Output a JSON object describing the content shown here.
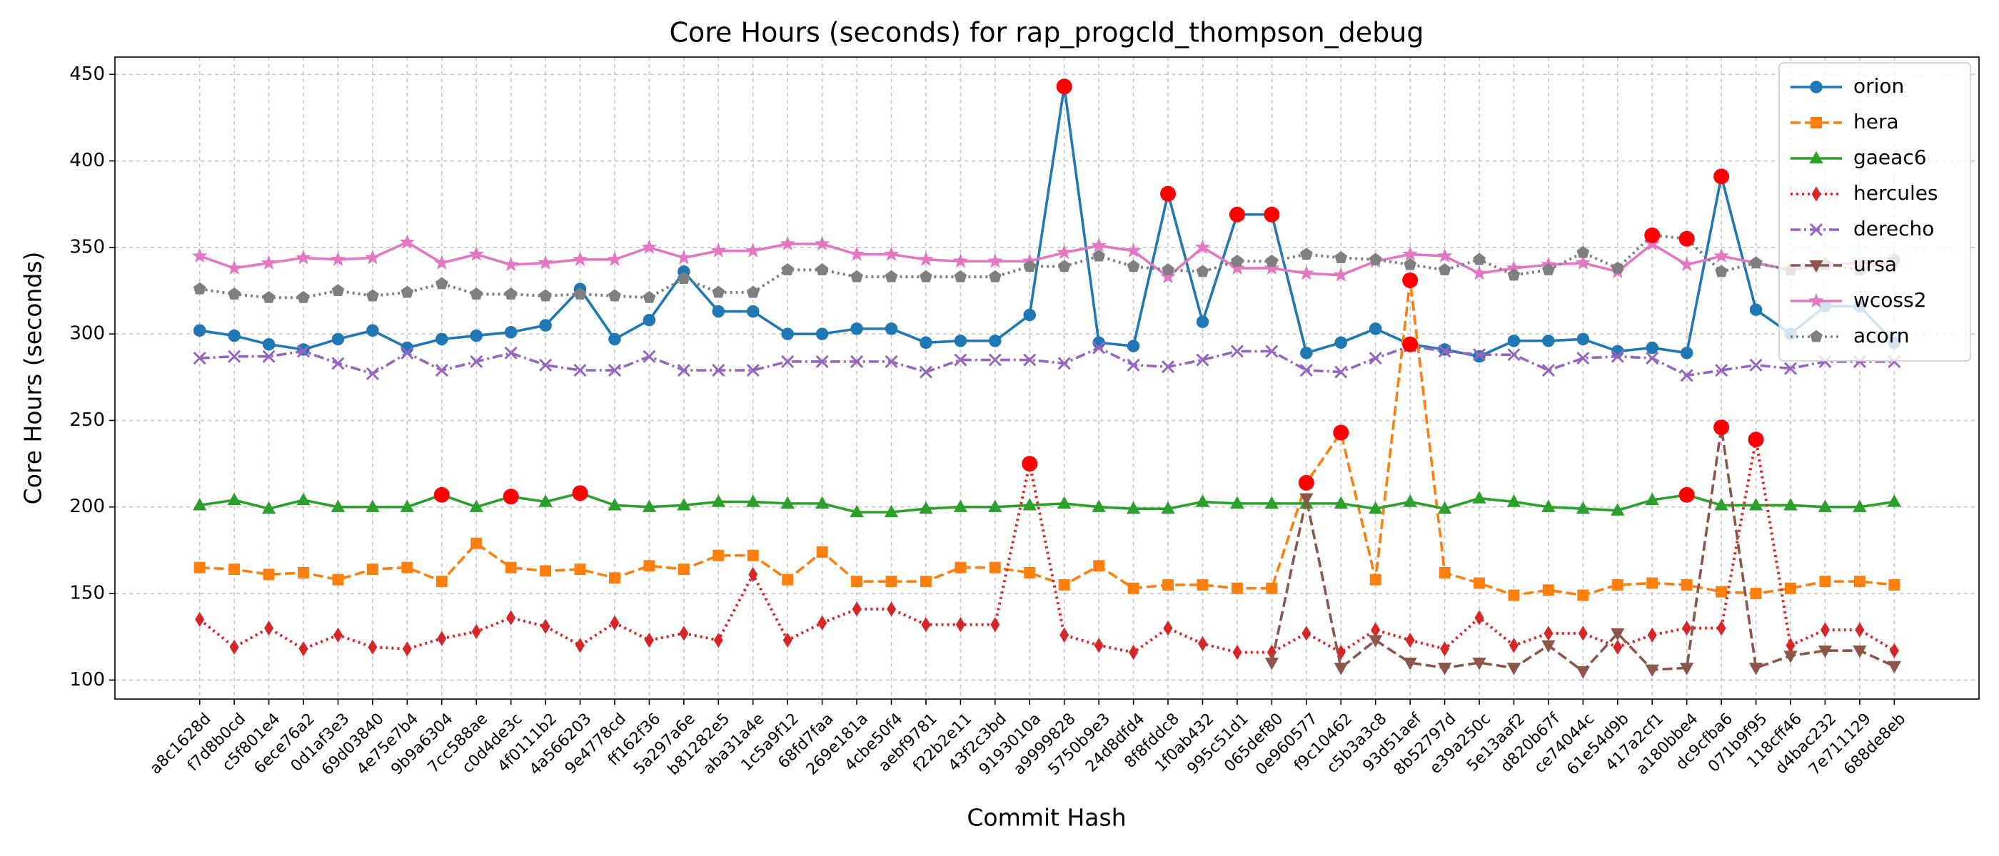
{
  "chart_data": {
    "type": "line",
    "title": "Core Hours (seconds) for rap_progcld_thompson_debug",
    "x_label": "Commit Hash",
    "y_label": "Core Hours (seconds)",
    "categories": [
      "a8c1628d",
      "f7d8b0cd",
      "c5f801e4",
      "6ece76a2",
      "0d1af3e3",
      "69d03840",
      "4e75e7b4",
      "9b9a6304",
      "7cc588ae",
      "c0d4de3c",
      "4f0111b2",
      "4a566203",
      "9e4778cd",
      "ff162f36",
      "5a297a6e",
      "b81282e5",
      "aba31a4e",
      "1c5a9f12",
      "68fd7faa",
      "269e181a",
      "4cbe50f4",
      "aebf9781",
      "f22b2e11",
      "43f2c3bd",
      "9193010a",
      "a9999828",
      "5750b9e3",
      "24d8dfd4",
      "8f8fddc8",
      "1f0ab432",
      "995c51d1",
      "065def80",
      "0e960577",
      "f9c10462",
      "c5b3a3c8",
      "93d51aef",
      "8b52797d",
      "e39a250c",
      "5e13aaf2",
      "d820b67f",
      "ce74044c",
      "61e54d9b",
      "417a2cf1",
      "a180bbe4",
      "dc9cfba6",
      "071b9f95",
      "118cff46",
      "d4bac232",
      "7e711129",
      "688de8eb"
    ],
    "ylim": [
      89,
      460
    ],
    "yticks": [
      100,
      150,
      200,
      250,
      300,
      350,
      400,
      450
    ],
    "grid": true,
    "legend": "upper right",
    "highlight_color": "#ff0000",
    "series": [
      {
        "name": "orion",
        "color": "#1f77b4",
        "marker": "circle",
        "dash": "solid",
        "values": [
          302,
          299,
          294,
          291,
          297,
          302,
          292,
          297,
          299,
          301,
          305,
          326,
          297,
          308,
          336,
          313,
          313,
          300,
          300,
          303,
          303,
          295,
          296,
          296,
          311,
          443,
          295,
          293,
          381,
          307,
          369,
          369,
          289,
          295,
          303,
          294,
          291,
          287,
          296,
          296,
          297,
          290,
          292,
          289,
          391,
          314,
          300,
          316,
          316,
          295
        ],
        "highlight_indices": [
          25,
          28,
          30,
          31,
          35,
          44
        ]
      },
      {
        "name": "hera",
        "color": "#ff7f0e",
        "marker": "square",
        "dash": "dashed",
        "values": [
          165,
          164,
          161,
          162,
          158,
          164,
          165,
          157,
          179,
          165,
          163,
          164,
          159,
          166,
          164,
          172,
          172,
          158,
          174,
          157,
          157,
          157,
          165,
          165,
          162,
          155,
          166,
          153,
          155,
          155,
          153,
          153,
          214,
          243,
          158,
          331,
          162,
          156,
          149,
          152,
          149,
          155,
          156,
          155,
          151,
          150,
          153,
          157,
          157,
          155
        ],
        "highlight_indices": [
          32,
          33,
          35
        ]
      },
      {
        "name": "gaeac6",
        "color": "#2ca02c",
        "marker": "triangle-up",
        "dash": "solid",
        "values": [
          201,
          204,
          199,
          204,
          200,
          200,
          200,
          207,
          200,
          206,
          203,
          208,
          201,
          200,
          201,
          203,
          203,
          202,
          202,
          197,
          197,
          199,
          200,
          200,
          201,
          202,
          200,
          199,
          199,
          203,
          202,
          202,
          202,
          202,
          199,
          203,
          199,
          205,
          203,
          200,
          199,
          198,
          204,
          207,
          201,
          201,
          201,
          200,
          200,
          203
        ],
        "highlight_indices": [
          7,
          9,
          11,
          43
        ]
      },
      {
        "name": "hercules",
        "color": "#d62728",
        "marker": "diamond",
        "dash": "dotted",
        "values": [
          135,
          119,
          130,
          118,
          126,
          119,
          118,
          124,
          128,
          136,
          131,
          120,
          133,
          123,
          127,
          123,
          161,
          123,
          133,
          141,
          141,
          132,
          132,
          132,
          225,
          126,
          120,
          116,
          130,
          121,
          116,
          116,
          127,
          116,
          129,
          123,
          118,
          136,
          120,
          127,
          127,
          119,
          126,
          130,
          130,
          239,
          120,
          129,
          129,
          117
        ],
        "highlight_indices": [
          24,
          45
        ]
      },
      {
        "name": "derecho",
        "color": "#9467bd",
        "marker": "x",
        "dash": "dashdot",
        "values": [
          286,
          287,
          287,
          290,
          283,
          277,
          289,
          279,
          284,
          289,
          282,
          279,
          279,
          287,
          279,
          279,
          279,
          284,
          284,
          284,
          284,
          278,
          285,
          285,
          285,
          283,
          292,
          282,
          281,
          285,
          290,
          290,
          279,
          278,
          286,
          293,
          290,
          288,
          288,
          279,
          286,
          287,
          286,
          276,
          279,
          282,
          280,
          284,
          284,
          284
        ],
        "highlight_indices": []
      },
      {
        "name": "ursa",
        "color": "#8c564b",
        "marker": "triangle-down",
        "dash": "dashed",
        "values": [
          null,
          null,
          null,
          null,
          null,
          null,
          null,
          null,
          null,
          null,
          null,
          null,
          null,
          null,
          null,
          null,
          null,
          null,
          null,
          null,
          null,
          null,
          null,
          null,
          null,
          null,
          null,
          null,
          null,
          null,
          null,
          110,
          205,
          107,
          123,
          110,
          107,
          110,
          107,
          120,
          105,
          127,
          106,
          107,
          246,
          107,
          114,
          117,
          117,
          108
        ],
        "highlight_indices": [
          44
        ]
      },
      {
        "name": "wcoss2",
        "color": "#e377c2",
        "marker": "star",
        "dash": "solid",
        "values": [
          345,
          338,
          341,
          344,
          343,
          344,
          353,
          341,
          346,
          340,
          341,
          343,
          343,
          350,
          344,
          348,
          348,
          352,
          352,
          346,
          346,
          343,
          342,
          342,
          342,
          347,
          351,
          348,
          333,
          350,
          338,
          338,
          335,
          334,
          342,
          346,
          345,
          335,
          338,
          340,
          341,
          336,
          352,
          340,
          345,
          341,
          337,
          340,
          341,
          341
        ],
        "highlight_indices": []
      },
      {
        "name": "acorn",
        "color": "#7f7f7f",
        "marker": "pentagon",
        "dash": "dotted",
        "values": [
          326,
          323,
          321,
          321,
          325,
          322,
          324,
          329,
          323,
          323,
          322,
          323,
          322,
          321,
          332,
          324,
          324,
          337,
          337,
          333,
          333,
          333,
          333,
          333,
          339,
          339,
          345,
          339,
          337,
          336,
          342,
          342,
          346,
          344,
          343,
          340,
          337,
          343,
          334,
          337,
          347,
          338,
          357,
          355,
          336,
          341,
          337,
          340,
          337,
          343
        ],
        "highlight_indices": [
          42,
          43
        ]
      }
    ]
  }
}
